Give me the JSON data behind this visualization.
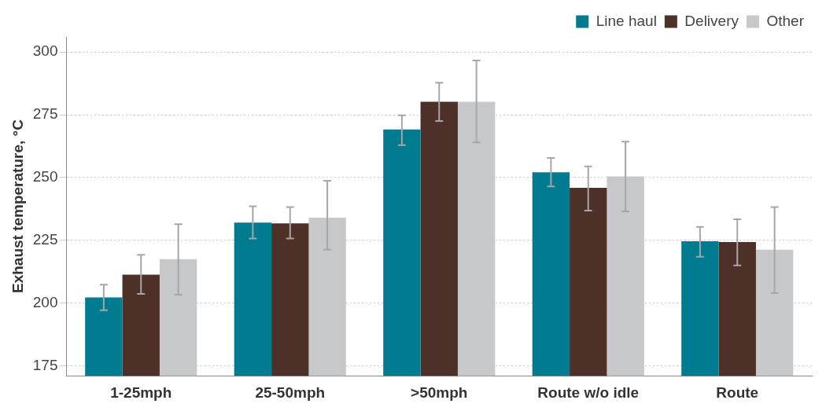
{
  "chart_data": {
    "type": "bar",
    "ylabel": "Exhaust temperature, °C",
    "categories": [
      "1-25mph",
      "25-50mph",
      ">50mph",
      "Route w/o idle",
      "Route"
    ],
    "series": [
      {
        "name": "Line haul",
        "color": "#007b8f",
        "values": [
          202.2,
          232.0,
          269.1,
          252.1,
          224.6
        ],
        "errors": [
          [
            197.1,
            207.3
          ],
          [
            225.7,
            238.5
          ],
          [
            262.9,
            274.8
          ],
          [
            246.4,
            257.8
          ],
          [
            218.4,
            230.3
          ]
        ]
      },
      {
        "name": "Delivery",
        "color": "#4d3128",
        "values": [
          211.3,
          231.7,
          280.2,
          245.9,
          224.3
        ],
        "errors": [
          [
            203.6,
            219.2
          ],
          [
            225.7,
            238.2
          ],
          [
            272.5,
            287.8
          ],
          [
            236.8,
            254.4
          ],
          [
            215.0,
            233.4
          ]
        ]
      },
      {
        "name": "Other",
        "color": "#c6c8ca",
        "values": [
          217.5,
          234.0,
          280.2,
          250.4,
          221.2
        ],
        "errors": [
          [
            203.3,
            231.4
          ],
          [
            221.2,
            248.7
          ],
          [
            264.0,
            296.6
          ],
          [
            236.5,
            264.3
          ],
          [
            203.9,
            238.2
          ]
        ]
      }
    ],
    "ylim": [
      171,
      306
    ],
    "yticks": [
      175,
      200,
      225,
      250,
      275,
      300
    ],
    "grid": "y",
    "legend": "top right"
  }
}
